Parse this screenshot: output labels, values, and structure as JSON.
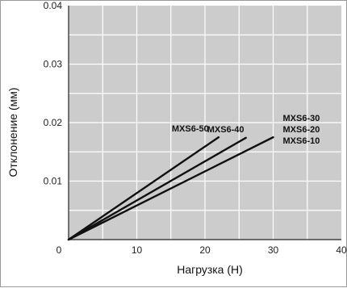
{
  "chart_data": {
    "type": "line",
    "title": "",
    "xlabel": "Нагрузка (Н)",
    "ylabel": "Отклонение (мм)",
    "xlim": [
      0,
      40
    ],
    "ylim": [
      0,
      0.04
    ],
    "x_ticks": [
      "0",
      "10",
      "20",
      "30",
      "40"
    ],
    "y_ticks": [
      "0",
      "0.01",
      "0.02",
      "0.03",
      "0.04"
    ],
    "grid": true,
    "minor_grid": true,
    "legend": "inline labels at line ends",
    "colors": {
      "plot_background": "#cccccc",
      "grid": "#ffffff",
      "line": "#111111"
    },
    "series": [
      {
        "name": "MXS6-50",
        "x": [
          0,
          22
        ],
        "y": [
          0,
          0.0175
        ]
      },
      {
        "name": "MXS6-40",
        "x": [
          0,
          26
        ],
        "y": [
          0,
          0.0174
        ]
      },
      {
        "name": "MXS6-30",
        "x": [
          0,
          30
        ],
        "y": [
          0,
          0.0175
        ]
      },
      {
        "name": "MXS6-20",
        "x": [
          0,
          30
        ],
        "y": [
          0,
          0.0175
        ]
      },
      {
        "name": "MXS6-10",
        "x": [
          0,
          30
        ],
        "y": [
          0,
          0.0175
        ]
      }
    ]
  }
}
